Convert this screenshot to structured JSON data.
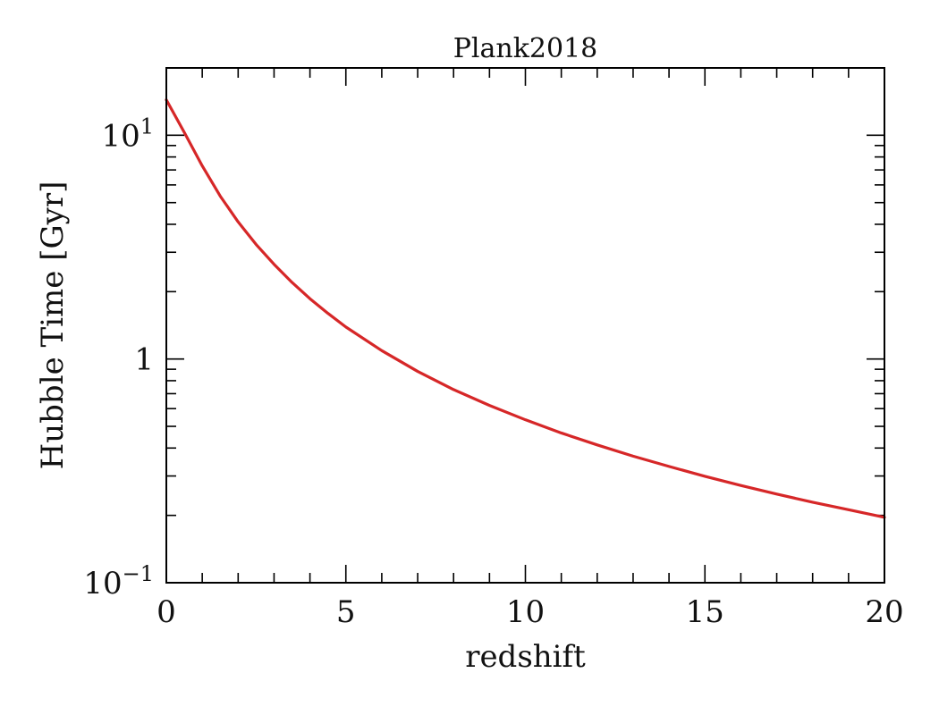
{
  "chart_data": {
    "type": "line",
    "title": "Plank2018",
    "xlabel": "redshift",
    "ylabel": "Hubble Time [Gyr]",
    "xlim": [
      0,
      20
    ],
    "ylim": [
      0.1,
      20
    ],
    "yscale": "log",
    "grid": false,
    "x_ticks": [
      {
        "value": 0,
        "label": "0"
      },
      {
        "value": 5,
        "label": "5"
      },
      {
        "value": 10,
        "label": "10"
      },
      {
        "value": 15,
        "label": "15"
      },
      {
        "value": 20,
        "label": "20"
      }
    ],
    "y_ticks": [
      {
        "value": 0.1,
        "base": "10",
        "exp": "−1"
      },
      {
        "value": 1,
        "base": "1",
        "exp": ""
      },
      {
        "value": 10,
        "base": "10",
        "exp": "1"
      }
    ],
    "series": [
      {
        "color": "#d62728",
        "x": [
          0,
          0.5,
          1,
          1.5,
          2,
          2.5,
          3,
          3.5,
          4,
          4.5,
          5,
          6,
          7,
          8,
          9,
          10,
          11,
          12,
          13,
          14,
          15,
          16,
          17,
          18,
          19,
          20
        ],
        "y": [
          14.4,
          10.3,
          7.3,
          5.35,
          4.1,
          3.25,
          2.65,
          2.2,
          1.86,
          1.6,
          1.39,
          1.09,
          0.88,
          0.73,
          0.62,
          0.535,
          0.467,
          0.413,
          0.368,
          0.331,
          0.299,
          0.272,
          0.249,
          0.229,
          0.212,
          0.196
        ]
      }
    ]
  }
}
